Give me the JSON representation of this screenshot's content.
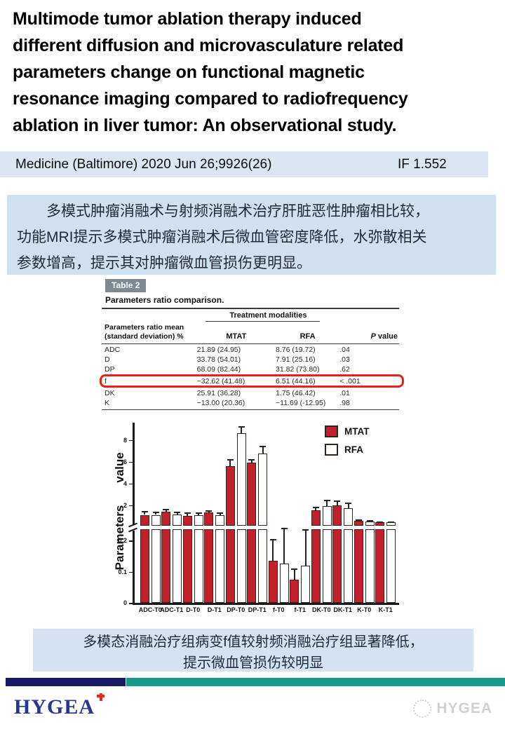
{
  "title": " Multimode tumor ablation therapy induced\ndifferent diffusion and microvasculature related\nparameters change on functional magnetic\nresonance imaging compared to radiofrequency\nablation in liver tumor: An observational study.",
  "citation": {
    "journal": "Medicine (Baltimore) 2020 Jun 26;9926(26)",
    "impact_factor": "IF 1.552"
  },
  "summary_cn": "　　多模式肿瘤消融术与射频消融术治疗肝脏恶性肿瘤相比较，\n功能MRI提示多模式肿瘤消融术后微血管密度降低，水弥散相关\n参数增高，提示其对肿瘤微血管损伤更明显。",
  "conclusion_cn": "多模态消融治疗组病变f值较射频消融治疗组显著降低，\n提示微血管损伤较明显",
  "table": {
    "badge": "Table 2",
    "caption": "Parameters ratio comparison.",
    "group_header": "Treatment modalities",
    "col1_header": "Parameters ratio mean\n(standard deviation) %",
    "col2_header": "MTAT",
    "col3_header": "RFA",
    "p_header_italic": "P",
    "p_header_rest": " value",
    "rows": [
      {
        "param": "ADC",
        "mtat": "21.89 (24.95)",
        "rfa": "8.76 (19.72)",
        "p": ".04",
        "highlight": false
      },
      {
        "param": "D",
        "mtat": "33.78 (54.01)",
        "rfa": "7.91 (25.16)",
        "p": ".03",
        "highlight": false
      },
      {
        "param": "DP",
        "mtat": "68.09 (82.44)",
        "rfa": "31.82 (73.80)",
        "p": ".62",
        "highlight": false
      },
      {
        "param": "f",
        "mtat": "−32.62 (41.48)",
        "rfa": "6.51 (44.16)",
        "p": "< .001",
        "highlight": true
      },
      {
        "param": "DK",
        "mtat": "25.91 (36.28)",
        "rfa": "1.75 (46.42)",
        "p": ".01",
        "highlight": false
      },
      {
        "param": "K",
        "mtat": "−13.00 (20.36)",
        "rfa": "−11.69 (-12.95)",
        "p": ".98",
        "highlight": false
      }
    ]
  },
  "chart_data": {
    "type": "bar",
    "title": "",
    "xlabel": "",
    "ylabel": "Parameters value",
    "ylabel_upper": "value",
    "ylabel_lower": "Parameters",
    "broken_axis": {
      "lower_range": [
        0,
        0.236
      ],
      "upper_range": [
        0.25,
        9.6
      ],
      "lower_ticks": [
        0,
        0.1,
        0.2
      ],
      "upper_ticks": [
        2,
        4,
        6,
        8
      ]
    },
    "grid": false,
    "legend_position": "top-right",
    "categories": [
      "ADC-T0",
      "ADC-T1",
      "D-T0",
      "D-T1",
      "DP-T0",
      "DP-T1",
      "f-T0",
      "f-T1",
      "DK-T0",
      "DK-T1",
      "K-T0",
      "K-T1"
    ],
    "series": [
      {
        "name": "MTAT",
        "fill": "#c2202a",
        "values": [
          1.1,
          1.4,
          1.0,
          1.3,
          5.6,
          5.9,
          0.135,
          0.075,
          1.5,
          2.0,
          0.55,
          0.4
        ],
        "errors": [
          0.35,
          0.25,
          0.3,
          0.25,
          0.6,
          0.3,
          0.07,
          0.035,
          0.35,
          0.45,
          0.1,
          0.08
        ]
      },
      {
        "name": "RFA",
        "fill": "#ffffff",
        "values": [
          1.1,
          1.15,
          1.05,
          1.1,
          8.6,
          6.75,
          0.125,
          0.12,
          1.9,
          1.7,
          0.5,
          0.4
        ],
        "errors": [
          0.3,
          0.25,
          0.3,
          0.25,
          0.65,
          0.7,
          0.115,
          0.115,
          0.6,
          0.55,
          0.1,
          0.08
        ]
      }
    ]
  },
  "footer": {
    "logo_text": "HYGEA",
    "watermark_text": "HYGEA"
  },
  "colors": {
    "cite_blue": "#dbe6f2",
    "box_blue": "#cfe1f1",
    "box2_blue": "#d3e3f3",
    "badge_gray": "#7d8a91",
    "highlight_red": "#e8221a",
    "chart_red": "#c2202a",
    "bar_border": "#33241e",
    "footer_navy": "#1a1a64",
    "footer_teal": "#169a8d",
    "logo_navy": "#28368f",
    "cross_red": "#e8251f"
  }
}
